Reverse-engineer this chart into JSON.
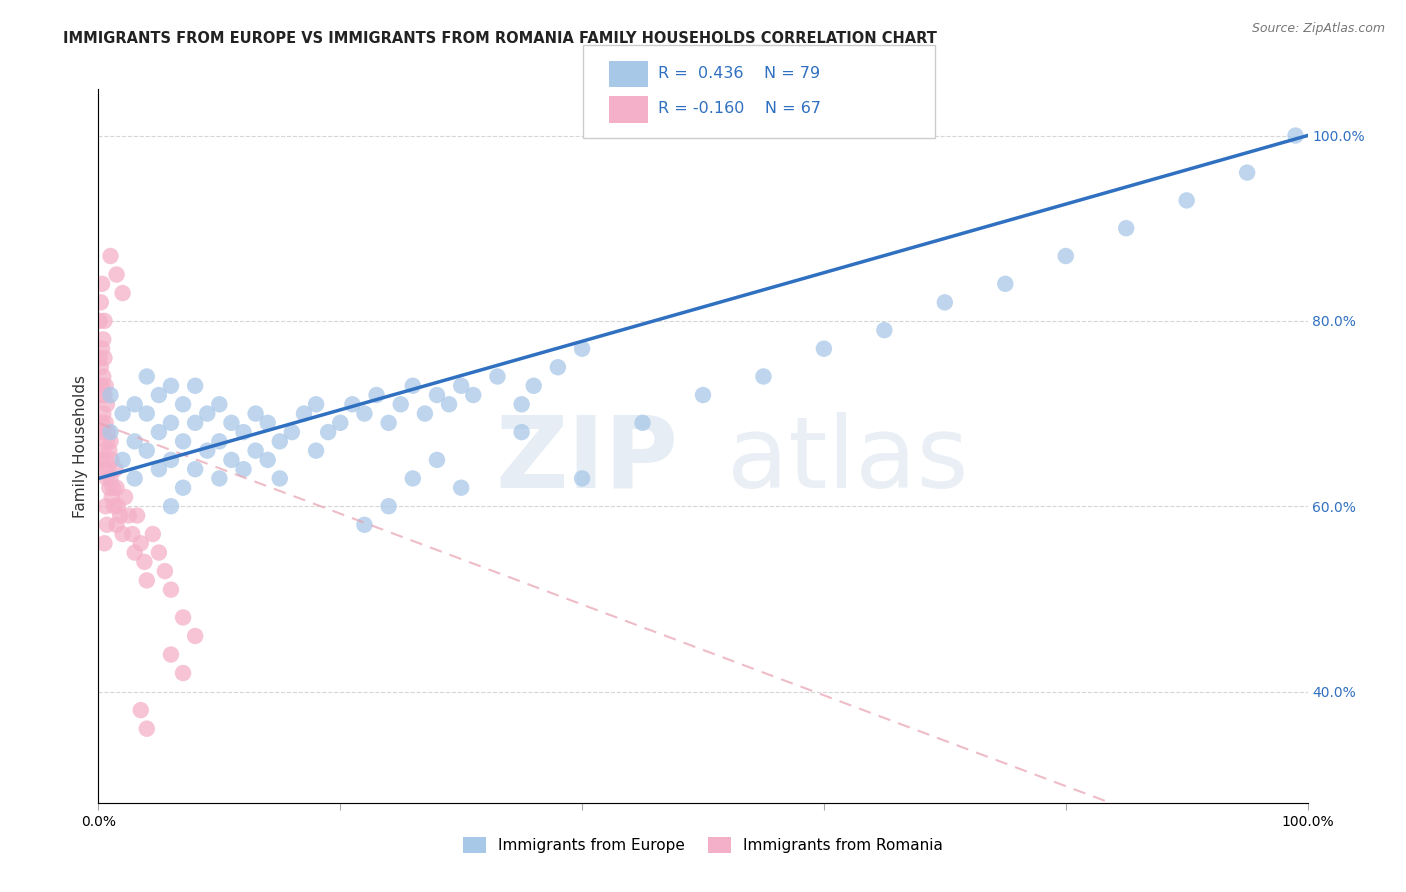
{
  "title": "IMMIGRANTS FROM EUROPE VS IMMIGRANTS FROM ROMANIA FAMILY HOUSEHOLDS CORRELATION CHART",
  "source": "Source: ZipAtlas.com",
  "ylabel": "Family Households",
  "legend_label_blue": "Immigrants from Europe",
  "legend_label_pink": "Immigrants from Romania",
  "r_blue": 0.436,
  "n_blue": 79,
  "r_pink": -0.16,
  "n_pink": 67,
  "blue_color": "#A8C8E8",
  "pink_color": "#F4B0C8",
  "blue_line_color": "#3070C0",
  "pink_line_color": "#E06080",
  "right_yticks": [
    "40.0%",
    "60.0%",
    "80.0%",
    "100.0%"
  ],
  "right_ytick_values": [
    0.4,
    0.6,
    0.8,
    1.0
  ],
  "blue_scatter_x": [
    0.01,
    0.01,
    0.02,
    0.02,
    0.03,
    0.03,
    0.03,
    0.04,
    0.04,
    0.04,
    0.05,
    0.05,
    0.05,
    0.06,
    0.06,
    0.06,
    0.06,
    0.07,
    0.07,
    0.07,
    0.08,
    0.08,
    0.08,
    0.09,
    0.09,
    0.1,
    0.1,
    0.1,
    0.11,
    0.11,
    0.12,
    0.12,
    0.13,
    0.13,
    0.14,
    0.14,
    0.15,
    0.15,
    0.16,
    0.17,
    0.18,
    0.18,
    0.19,
    0.2,
    0.21,
    0.22,
    0.23,
    0.24,
    0.25,
    0.26,
    0.27,
    0.28,
    0.29,
    0.3,
    0.31,
    0.33,
    0.35,
    0.36,
    0.38,
    0.4,
    0.22,
    0.24,
    0.26,
    0.28,
    0.3,
    0.35,
    0.4,
    0.45,
    0.5,
    0.55,
    0.6,
    0.65,
    0.7,
    0.75,
    0.8,
    0.85,
    0.9,
    0.95,
    0.99
  ],
  "blue_scatter_y": [
    0.68,
    0.72,
    0.65,
    0.7,
    0.63,
    0.67,
    0.71,
    0.66,
    0.7,
    0.74,
    0.64,
    0.68,
    0.72,
    0.6,
    0.65,
    0.69,
    0.73,
    0.62,
    0.67,
    0.71,
    0.64,
    0.69,
    0.73,
    0.66,
    0.7,
    0.63,
    0.67,
    0.71,
    0.65,
    0.69,
    0.64,
    0.68,
    0.66,
    0.7,
    0.65,
    0.69,
    0.63,
    0.67,
    0.68,
    0.7,
    0.66,
    0.71,
    0.68,
    0.69,
    0.71,
    0.7,
    0.72,
    0.69,
    0.71,
    0.73,
    0.7,
    0.72,
    0.71,
    0.73,
    0.72,
    0.74,
    0.71,
    0.73,
    0.75,
    0.77,
    0.58,
    0.6,
    0.63,
    0.65,
    0.62,
    0.68,
    0.63,
    0.69,
    0.72,
    0.74,
    0.77,
    0.79,
    0.82,
    0.84,
    0.87,
    0.9,
    0.93,
    0.96,
    1.0
  ],
  "pink_scatter_x": [
    0.001,
    0.001,
    0.001,
    0.002,
    0.002,
    0.002,
    0.002,
    0.003,
    0.003,
    0.003,
    0.003,
    0.003,
    0.004,
    0.004,
    0.004,
    0.004,
    0.005,
    0.005,
    0.005,
    0.005,
    0.005,
    0.006,
    0.006,
    0.006,
    0.007,
    0.007,
    0.007,
    0.008,
    0.008,
    0.009,
    0.009,
    0.01,
    0.01,
    0.011,
    0.011,
    0.012,
    0.013,
    0.014,
    0.015,
    0.015,
    0.016,
    0.018,
    0.02,
    0.022,
    0.025,
    0.028,
    0.03,
    0.032,
    0.035,
    0.038,
    0.04,
    0.045,
    0.05,
    0.055,
    0.06,
    0.07,
    0.08,
    0.035,
    0.04,
    0.01,
    0.015,
    0.02,
    0.06,
    0.07,
    0.005,
    0.006,
    0.007
  ],
  "pink_scatter_y": [
    0.73,
    0.76,
    0.8,
    0.68,
    0.72,
    0.75,
    0.82,
    0.65,
    0.69,
    0.73,
    0.77,
    0.84,
    0.66,
    0.7,
    0.74,
    0.78,
    0.64,
    0.68,
    0.72,
    0.76,
    0.8,
    0.65,
    0.69,
    0.73,
    0.63,
    0.67,
    0.71,
    0.64,
    0.68,
    0.62,
    0.66,
    0.63,
    0.67,
    0.61,
    0.65,
    0.62,
    0.6,
    0.64,
    0.58,
    0.62,
    0.6,
    0.59,
    0.57,
    0.61,
    0.59,
    0.57,
    0.55,
    0.59,
    0.56,
    0.54,
    0.52,
    0.57,
    0.55,
    0.53,
    0.51,
    0.48,
    0.46,
    0.38,
    0.36,
    0.87,
    0.85,
    0.83,
    0.44,
    0.42,
    0.56,
    0.6,
    0.58
  ],
  "ylim": [
    0.28,
    1.05
  ],
  "xlim": [
    0.0,
    1.0
  ],
  "title_fontsize": 10.5,
  "axis_label_fontsize": 11,
  "tick_fontsize": 10,
  "blue_line_start_y": 0.63,
  "blue_line_end_y": 1.0,
  "pink_line_start_y": 0.69,
  "pink_line_end_y": 0.2
}
